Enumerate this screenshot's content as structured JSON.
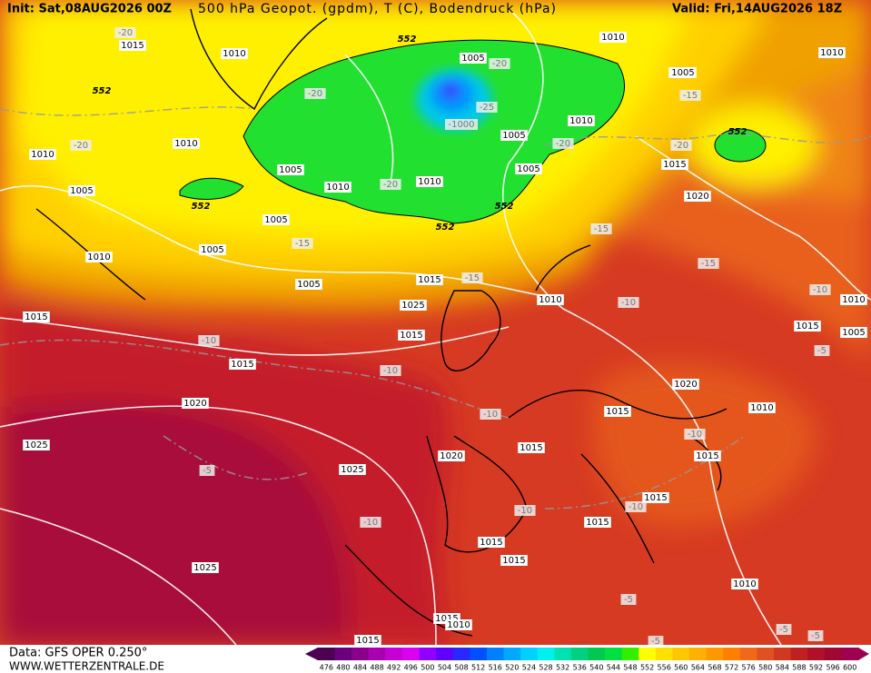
{
  "header": {
    "init": "Init: Sat,08AUG2026 00Z",
    "title": "500 hPa Geopot. (gpdm), T (C), Bodendruck (hPa)",
    "valid": "Valid: Fri,14AUG2026 18Z"
  },
  "footer": {
    "data": "Data: GFS OPER 0.250°",
    "site": "WWW.WETTERZENTRALE.DE"
  },
  "colorbar": {
    "ticks": [
      476,
      480,
      484,
      488,
      492,
      496,
      500,
      504,
      508,
      512,
      516,
      520,
      524,
      528,
      532,
      536,
      540,
      544,
      548,
      552,
      556,
      560,
      564,
      568,
      572,
      576,
      580,
      584,
      588,
      592,
      596,
      600
    ],
    "colors": [
      "#4b0050",
      "#6a0080",
      "#8b008b",
      "#a800b0",
      "#c400d4",
      "#dc00f0",
      "#9000ff",
      "#6000ff",
      "#2828ff",
      "#0050ff",
      "#0080ff",
      "#00a8ff",
      "#00d0ff",
      "#00f0f0",
      "#00e0b0",
      "#00d080",
      "#00c850",
      "#00e040",
      "#30f000",
      "#ffff00",
      "#ffe000",
      "#ffc800",
      "#ffb000",
      "#ff9800",
      "#ff8000",
      "#f06818",
      "#e05020",
      "#d03820",
      "#c02020",
      "#b01028",
      "#a00830",
      "#a00050"
    ]
  },
  "map": {
    "labels": [
      "1015",
      "-20",
      "1010",
      "552",
      "1005",
      "-20",
      "1010",
      "1005",
      "-20",
      "-1000",
      "-25",
      "1005",
      "1010",
      "-20",
      "1010",
      "1005",
      "552",
      "1010",
      "-20",
      "1010",
      "1005",
      "-15",
      "1015",
      "1010",
      "1005",
      "-20",
      "1005",
      "552",
      "1010",
      "1005",
      "-20",
      "1010",
      "552",
      "1005",
      "552",
      "-15",
      "1015",
      "-15",
      "1020",
      "1015",
      "-15",
      "-10",
      "1010",
      "1015",
      "1025",
      "1005",
      "1015",
      "-10",
      "1010",
      "1015",
      "1020",
      "-10",
      "1020",
      "-10",
      "1015",
      "1010",
      "1025",
      "-5",
      "1020",
      "1015",
      "1025",
      "-10",
      "-10",
      "1015",
      "1015",
      "1015",
      "1025",
      "1015",
      "1015",
      "-10",
      "-5",
      "1010",
      "-5",
      "-5",
      "1010",
      "1015",
      "-5",
      "-5",
      "552",
      "-15",
      "-10",
      "1015",
      "-10",
      "1005"
    ]
  }
}
